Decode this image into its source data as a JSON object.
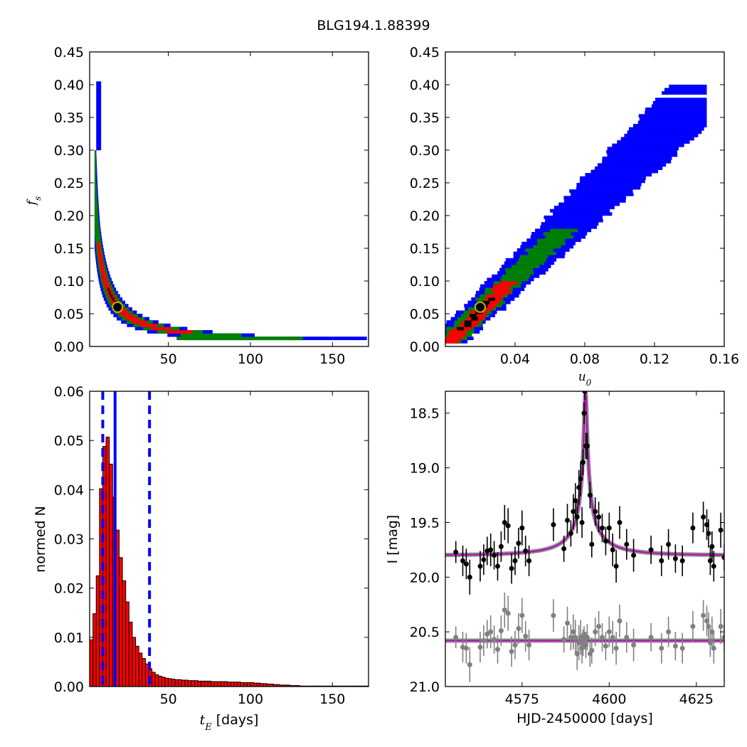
{
  "figure": {
    "title": "BLG194.1.88399"
  },
  "chart_data": [
    {
      "id": "tl",
      "type": "heatmap",
      "title": "",
      "xlabel": "",
      "ylabel": "f_s",
      "xlim": [
        2,
        172
      ],
      "ylim": [
        0,
        0.45
      ],
      "xticks": [
        50,
        100,
        150
      ],
      "yticks": [
        0,
        0.05,
        0.1,
        0.15,
        0.2,
        0.25,
        0.3,
        0.35,
        0.4,
        0.45
      ],
      "ytick_labels": [
        "0.00",
        "0.05",
        "0.10",
        "0.15",
        "0.20",
        "0.25",
        "0.30",
        "0.35",
        "0.40",
        "0.45"
      ],
      "levels": [
        {
          "name": "outer",
          "color": "#0000ff"
        },
        {
          "name": "middle",
          "color": "#008000"
        },
        {
          "name": "inner",
          "color": "#ff0000"
        },
        {
          "name": "core",
          "color": "#000000"
        }
      ],
      "best_fit": {
        "x": 19,
        "y": 0.06
      },
      "grid": false
    },
    {
      "id": "tr",
      "type": "heatmap",
      "title": "",
      "xlabel": "u_0",
      "ylabel": "",
      "xlim": [
        0,
        0.16
      ],
      "ylim": [
        0,
        0.45
      ],
      "xticks": [
        0.04,
        0.08,
        0.12,
        0.16
      ],
      "xtick_labels": [
        "0.04",
        "0.08",
        "0.12",
        "0.16"
      ],
      "yticks": [
        0,
        0.05,
        0.1,
        0.15,
        0.2,
        0.25,
        0.3,
        0.35,
        0.4,
        0.45
      ],
      "ytick_labels": [
        "0.00",
        "0.05",
        "0.10",
        "0.15",
        "0.20",
        "0.25",
        "0.30",
        "0.35",
        "0.40",
        "0.45"
      ],
      "best_fit": {
        "x": 0.02,
        "y": 0.06
      },
      "grid": false
    },
    {
      "id": "bl",
      "type": "bar",
      "title": "",
      "xlabel": "t_E  [days]",
      "ylabel": "normed N",
      "xlim": [
        2,
        172
      ],
      "ylim": [
        0,
        0.06
      ],
      "xticks": [
        50,
        100,
        150
      ],
      "yticks": [
        0,
        0.01,
        0.02,
        0.03,
        0.04,
        0.05,
        0.06
      ],
      "ytick_labels": [
        "0.00",
        "0.01",
        "0.02",
        "0.03",
        "0.04",
        "0.05",
        "0.06"
      ],
      "bin_start": 2,
      "bin_width": 2,
      "values": [
        0.0095,
        0.0148,
        0.0225,
        0.0402,
        0.0488,
        0.0507,
        0.0452,
        0.0385,
        0.0318,
        0.0262,
        0.0215,
        0.0172,
        0.0131,
        0.01,
        0.0082,
        0.0068,
        0.0057,
        0.0046,
        0.0036,
        0.0029,
        0.0024,
        0.0021,
        0.0019,
        0.0017,
        0.0016,
        0.0015,
        0.0014,
        0.0014,
        0.0013,
        0.0013,
        0.0012,
        0.0012,
        0.0012,
        0.0011,
        0.0011,
        0.0011,
        0.0011,
        0.001,
        0.001,
        0.001,
        0.001,
        0.001,
        0.0009,
        0.0009,
        0.0009,
        0.0009,
        0.0008,
        0.0008,
        0.0008,
        0.0008,
        0.0007,
        0.0007,
        0.0006,
        0.0006,
        0.0005,
        0.0005,
        0.0004,
        0.0004,
        0.0003,
        0.0003,
        0.0003,
        0.0002,
        0.0002,
        0.0002,
        0.0001,
        0.0001,
        0.0001,
        0.0001,
        0.0001,
        0.0001,
        0.0001,
        0.0001,
        0.0001,
        0.0001,
        0.0001,
        0.0001,
        0.0001,
        0.0001,
        0.0001,
        0.0001,
        0.0001,
        0.0001,
        0.0001,
        0.0001,
        0.0001
      ],
      "bar_color": "#ff0000",
      "vlines": [
        {
          "x": 10,
          "style": "dashed",
          "color": "#0000ff"
        },
        {
          "x": 17.5,
          "style": "solid",
          "color": "#0000ff"
        },
        {
          "x": 38.5,
          "style": "dashed",
          "color": "#0000ff"
        }
      ],
      "grid": false
    },
    {
      "id": "br",
      "type": "scatter",
      "title": "",
      "xlabel": "HJD-2450000 [days]",
      "ylabel": "I [mag]",
      "xlim": [
        4553,
        4633
      ],
      "ylim": [
        21.0,
        18.3
      ],
      "y_inverted": true,
      "xticks": [
        4575,
        4600,
        4625
      ],
      "yticks": [
        18.5,
        19.0,
        19.5,
        20.0,
        20.5,
        21.0
      ],
      "ytick_labels": [
        "18.5",
        "19.0",
        "19.5",
        "20.0",
        "20.5",
        "21.0"
      ],
      "model": {
        "t0": 4593.2,
        "u0": 0.02,
        "tE": 19,
        "baseline": 19.8,
        "fs": 0.06,
        "color": "#bf00bf"
      },
      "residual_offset": 20.58,
      "series": [
        {
          "color": "#000000",
          "points": [
            {
              "x": 4556,
              "y": 19.77,
              "err": 0.1
            },
            {
              "x": 4558,
              "y": 19.85,
              "err": 0.14
            },
            {
              "x": 4559,
              "y": 19.88,
              "err": 0.14
            },
            {
              "x": 4560,
              "y": 20.0,
              "err": 0.16
            },
            {
              "x": 4563,
              "y": 19.9,
              "err": 0.14
            },
            {
              "x": 4564,
              "y": 19.84,
              "err": 0.14
            },
            {
              "x": 4565,
              "y": 19.76,
              "err": 0.13
            },
            {
              "x": 4566,
              "y": 19.75,
              "err": 0.15
            },
            {
              "x": 4567,
              "y": 19.8,
              "err": 0.13
            },
            {
              "x": 4568,
              "y": 19.9,
              "err": 0.13
            },
            {
              "x": 4569,
              "y": 19.72,
              "err": 0.14
            },
            {
              "x": 4570,
              "y": 19.5,
              "err": 0.16
            },
            {
              "x": 4571,
              "y": 19.53,
              "err": 0.16
            },
            {
              "x": 4572,
              "y": 19.92,
              "err": 0.14
            },
            {
              "x": 4573,
              "y": 19.85,
              "err": 0.13
            },
            {
              "x": 4574,
              "y": 19.69,
              "err": 0.14
            },
            {
              "x": 4575,
              "y": 19.55,
              "err": 0.16
            },
            {
              "x": 4576,
              "y": 19.76,
              "err": 0.14
            },
            {
              "x": 4577,
              "y": 19.85,
              "err": 0.14
            },
            {
              "x": 4584,
              "y": 19.52,
              "err": 0.15
            },
            {
              "x": 4587,
              "y": 19.74,
              "err": 0.12
            },
            {
              "x": 4588,
              "y": 19.48,
              "err": 0.15
            },
            {
              "x": 4589,
              "y": 19.6,
              "err": 0.12
            },
            {
              "x": 4589.7,
              "y": 19.4,
              "err": 0.16
            },
            {
              "x": 4590.3,
              "y": 19.3,
              "err": 0.16
            },
            {
              "x": 4590.8,
              "y": 19.45,
              "err": 0.15
            },
            {
              "x": 4591.3,
              "y": 19.18,
              "err": 0.16
            },
            {
              "x": 4591.8,
              "y": 19.1,
              "err": 0.16
            },
            {
              "x": 4592.2,
              "y": 19.5,
              "err": 0.14
            },
            {
              "x": 4592.5,
              "y": 18.95,
              "err": 0.12
            },
            {
              "x": 4592.8,
              "y": 18.5,
              "err": 0.1
            },
            {
              "x": 4593,
              "y": 18.3,
              "err": 0.08
            },
            {
              "x": 4593.3,
              "y": 18.8,
              "err": 0.12
            },
            {
              "x": 4593.7,
              "y": 18.8,
              "err": 0.12
            },
            {
              "x": 4594.5,
              "y": 19.25,
              "err": 0.12
            },
            {
              "x": 4595,
              "y": 19.7,
              "err": 0.12
            },
            {
              "x": 4596,
              "y": 19.4,
              "err": 0.13
            },
            {
              "x": 4597,
              "y": 19.45,
              "err": 0.14
            },
            {
              "x": 4598,
              "y": 19.55,
              "err": 0.13
            },
            {
              "x": 4599,
              "y": 19.67,
              "err": 0.13
            },
            {
              "x": 4600,
              "y": 19.55,
              "err": 0.14
            },
            {
              "x": 4601,
              "y": 19.75,
              "err": 0.15
            },
            {
              "x": 4602,
              "y": 19.9,
              "err": 0.15
            },
            {
              "x": 4603,
              "y": 19.5,
              "err": 0.15
            },
            {
              "x": 4605,
              "y": 19.7,
              "err": 0.14
            },
            {
              "x": 4607,
              "y": 19.8,
              "err": 0.15
            },
            {
              "x": 4612,
              "y": 19.75,
              "err": 0.13
            },
            {
              "x": 4615,
              "y": 19.85,
              "err": 0.14
            },
            {
              "x": 4617,
              "y": 19.7,
              "err": 0.14
            },
            {
              "x": 4619,
              "y": 19.83,
              "err": 0.13
            },
            {
              "x": 4621,
              "y": 19.85,
              "err": 0.14
            },
            {
              "x": 4624,
              "y": 19.55,
              "err": 0.14
            },
            {
              "x": 4627,
              "y": 19.45,
              "err": 0.14
            },
            {
              "x": 4628,
              "y": 19.52,
              "err": 0.14
            },
            {
              "x": 4628.5,
              "y": 19.6,
              "err": 0.13
            },
            {
              "x": 4629,
              "y": 19.85,
              "err": 0.13
            },
            {
              "x": 4629.5,
              "y": 19.72,
              "err": 0.14
            },
            {
              "x": 4630,
              "y": 19.9,
              "err": 0.14
            },
            {
              "x": 4632,
              "y": 19.57,
              "err": 0.16
            },
            {
              "x": 4633,
              "y": 19.82,
              "err": 0.12
            }
          ]
        },
        {
          "color": "#808080",
          "points": [
            {
              "x": 4556,
              "y": 20.55,
              "err": 0.1
            },
            {
              "x": 4558,
              "y": 20.64,
              "err": 0.14
            },
            {
              "x": 4559,
              "y": 20.65,
              "err": 0.14
            },
            {
              "x": 4560,
              "y": 20.8,
              "err": 0.16
            },
            {
              "x": 4563,
              "y": 20.64,
              "err": 0.14
            },
            {
              "x": 4564,
              "y": 20.58,
              "err": 0.14
            },
            {
              "x": 4565,
              "y": 20.52,
              "err": 0.13
            },
            {
              "x": 4566,
              "y": 20.5,
              "err": 0.15
            },
            {
              "x": 4567,
              "y": 20.57,
              "err": 0.13
            },
            {
              "x": 4568,
              "y": 20.66,
              "err": 0.13
            },
            {
              "x": 4569,
              "y": 20.49,
              "err": 0.14
            },
            {
              "x": 4570,
              "y": 20.3,
              "err": 0.16
            },
            {
              "x": 4571,
              "y": 20.33,
              "err": 0.16
            },
            {
              "x": 4572,
              "y": 20.68,
              "err": 0.14
            },
            {
              "x": 4573,
              "y": 20.62,
              "err": 0.13
            },
            {
              "x": 4574,
              "y": 20.47,
              "err": 0.14
            },
            {
              "x": 4575,
              "y": 20.35,
              "err": 0.16
            },
            {
              "x": 4576,
              "y": 20.54,
              "err": 0.14
            },
            {
              "x": 4577,
              "y": 20.62,
              "err": 0.14
            },
            {
              "x": 4584,
              "y": 20.35,
              "err": 0.15
            },
            {
              "x": 4587,
              "y": 20.57,
              "err": 0.12
            },
            {
              "x": 4588,
              "y": 20.42,
              "err": 0.15
            },
            {
              "x": 4589,
              "y": 20.55,
              "err": 0.12
            },
            {
              "x": 4589.7,
              "y": 20.5,
              "err": 0.16
            },
            {
              "x": 4590.3,
              "y": 20.55,
              "err": 0.16
            },
            {
              "x": 4590.8,
              "y": 20.7,
              "err": 0.15
            },
            {
              "x": 4591.3,
              "y": 20.6,
              "err": 0.16
            },
            {
              "x": 4591.8,
              "y": 20.55,
              "err": 0.16
            },
            {
              "x": 4592.2,
              "y": 20.65,
              "err": 0.14
            },
            {
              "x": 4592.5,
              "y": 20.6,
              "err": 0.12
            },
            {
              "x": 4592.8,
              "y": 20.55,
              "err": 0.1
            },
            {
              "x": 4593,
              "y": 20.58,
              "err": 0.08
            },
            {
              "x": 4593.3,
              "y": 20.62,
              "err": 0.12
            },
            {
              "x": 4593.7,
              "y": 20.55,
              "err": 0.12
            },
            {
              "x": 4594.5,
              "y": 20.7,
              "err": 0.12
            },
            {
              "x": 4595,
              "y": 20.67,
              "err": 0.12
            },
            {
              "x": 4596,
              "y": 20.5,
              "err": 0.13
            },
            {
              "x": 4597,
              "y": 20.45,
              "err": 0.14
            },
            {
              "x": 4598,
              "y": 20.55,
              "err": 0.13
            },
            {
              "x": 4599,
              "y": 20.63,
              "err": 0.13
            },
            {
              "x": 4600,
              "y": 20.5,
              "err": 0.14
            },
            {
              "x": 4601,
              "y": 20.55,
              "err": 0.15
            },
            {
              "x": 4602,
              "y": 20.65,
              "err": 0.15
            },
            {
              "x": 4603,
              "y": 20.4,
              "err": 0.15
            },
            {
              "x": 4605,
              "y": 20.55,
              "err": 0.14
            },
            {
              "x": 4607,
              "y": 20.62,
              "err": 0.15
            },
            {
              "x": 4612,
              "y": 20.55,
              "err": 0.13
            },
            {
              "x": 4615,
              "y": 20.65,
              "err": 0.14
            },
            {
              "x": 4617,
              "y": 20.5,
              "err": 0.14
            },
            {
              "x": 4619,
              "y": 20.63,
              "err": 0.13
            },
            {
              "x": 4621,
              "y": 20.65,
              "err": 0.14
            },
            {
              "x": 4624,
              "y": 20.45,
              "err": 0.14
            },
            {
              "x": 4627,
              "y": 20.35,
              "err": 0.14
            },
            {
              "x": 4628,
              "y": 20.4,
              "err": 0.14
            },
            {
              "x": 4628.5,
              "y": 20.45,
              "err": 0.13
            },
            {
              "x": 4629,
              "y": 20.6,
              "err": 0.13
            },
            {
              "x": 4629.5,
              "y": 20.5,
              "err": 0.14
            },
            {
              "x": 4630,
              "y": 20.65,
              "err": 0.14
            },
            {
              "x": 4632,
              "y": 20.45,
              "err": 0.16
            },
            {
              "x": 4633,
              "y": 20.55,
              "err": 0.12
            }
          ]
        }
      ],
      "grid": false
    }
  ]
}
